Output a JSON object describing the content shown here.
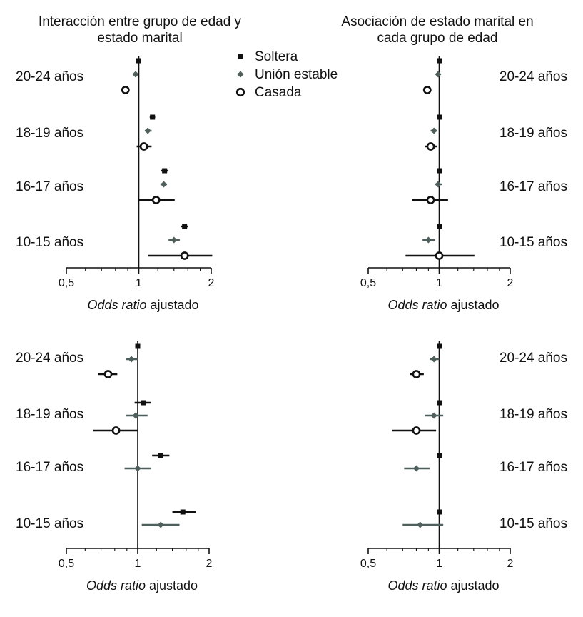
{
  "colors": {
    "soltera": "#111111",
    "union": "#4f5f5c",
    "casada": "#111111",
    "axis": "#111111"
  },
  "legend": {
    "items": [
      {
        "key": "soltera",
        "label": "Soltera",
        "marker": "square"
      },
      {
        "key": "union",
        "label": "Unión estable",
        "marker": "diamond"
      },
      {
        "key": "casada",
        "label": "Casada",
        "marker": "circle"
      }
    ]
  },
  "chart_data": [
    {
      "type": "forest",
      "title": [
        "Interacción entre grupo de edad y",
        "estado marital"
      ],
      "xlabel_italic": "Odds ratio",
      "xlabel_rest": " ajustado",
      "xscale": "log",
      "xlim": [
        0.5,
        2
      ],
      "xticks": [
        0.5,
        1,
        2
      ],
      "xtick_labels": [
        "0,5",
        "1",
        "2"
      ],
      "reference": 1,
      "label_side": "left",
      "groups": [
        {
          "label": "20-24 años",
          "points": [
            {
              "series": "soltera",
              "value": 1.0
            },
            {
              "series": "union",
              "value": 0.97
            },
            {
              "series": "casada",
              "value": 0.88
            }
          ]
        },
        {
          "label": "18-19 años",
          "points": [
            {
              "series": "soltera",
              "value": 1.14,
              "lo": 1.11,
              "hi": 1.17
            },
            {
              "series": "union",
              "value": 1.09,
              "lo": 1.06,
              "hi": 1.13
            },
            {
              "series": "casada",
              "value": 1.05,
              "lo": 0.98,
              "hi": 1.13
            }
          ]
        },
        {
          "label": "16-17 años",
          "points": [
            {
              "series": "soltera",
              "value": 1.28,
              "lo": 1.24,
              "hi": 1.32
            },
            {
              "series": "union",
              "value": 1.27,
              "lo": 1.23,
              "hi": 1.31
            },
            {
              "series": "casada",
              "value": 1.18,
              "lo": 1.0,
              "hi": 1.41
            }
          ]
        },
        {
          "label": "10-15 años",
          "points": [
            {
              "series": "soltera",
              "value": 1.55,
              "lo": 1.5,
              "hi": 1.6
            },
            {
              "series": "union",
              "value": 1.4,
              "lo": 1.33,
              "hi": 1.48
            },
            {
              "series": "casada",
              "value": 1.55,
              "lo": 1.09,
              "hi": 2.02
            }
          ]
        }
      ]
    },
    {
      "type": "forest",
      "title": [
        "Asociación de estado marital en",
        "cada grupo de edad"
      ],
      "xlabel_italic": "Odds ratio",
      "xlabel_rest": " ajustado",
      "xscale": "log",
      "xlim": [
        0.5,
        2
      ],
      "xticks": [
        0.5,
        1,
        2
      ],
      "xtick_labels": [
        "0,5",
        "1",
        "2"
      ],
      "reference": 1,
      "label_side": "right",
      "groups": [
        {
          "label": "20-24 años",
          "points": [
            {
              "series": "soltera",
              "value": 1.0
            },
            {
              "series": "union",
              "value": 0.99
            },
            {
              "series": "casada",
              "value": 0.89
            }
          ]
        },
        {
          "label": "18-19 años",
          "points": [
            {
              "series": "soltera",
              "value": 1.0
            },
            {
              "series": "union",
              "value": 0.95,
              "lo": 0.92,
              "hi": 0.98
            },
            {
              "series": "casada",
              "value": 0.92,
              "lo": 0.87,
              "hi": 0.98
            }
          ]
        },
        {
          "label": "16-17 años",
          "points": [
            {
              "series": "soltera",
              "value": 1.0
            },
            {
              "series": "union",
              "value": 0.99,
              "lo": 0.96,
              "hi": 1.03
            },
            {
              "series": "casada",
              "value": 0.92,
              "lo": 0.77,
              "hi": 1.09
            }
          ]
        },
        {
          "label": "10-15 años",
          "points": [
            {
              "series": "soltera",
              "value": 1.0
            },
            {
              "series": "union",
              "value": 0.9,
              "lo": 0.85,
              "hi": 0.96
            },
            {
              "series": "casada",
              "value": 1.0,
              "lo": 0.72,
              "hi": 1.41
            }
          ]
        }
      ]
    },
    {
      "type": "forest",
      "title": [],
      "xlabel_italic": "Odds ratio",
      "xlabel_rest": " ajustado",
      "xscale": "log",
      "xlim": [
        0.5,
        2
      ],
      "xticks": [
        0.5,
        1,
        2
      ],
      "xtick_labels": [
        "0,5",
        "1",
        "2"
      ],
      "reference": 1,
      "label_side": "left",
      "groups": [
        {
          "label": "20-24 años",
          "points": [
            {
              "series": "soltera",
              "value": 1.0
            },
            {
              "series": "union",
              "value": 0.94,
              "lo": 0.89,
              "hi": 1.0
            },
            {
              "series": "casada",
              "value": 0.75,
              "lo": 0.68,
              "hi": 0.82
            }
          ]
        },
        {
          "label": "18-19 años",
          "points": [
            {
              "series": "soltera",
              "value": 1.06,
              "lo": 0.97,
              "hi": 1.14
            },
            {
              "series": "union",
              "value": 0.98,
              "lo": 0.89,
              "hi": 1.1
            },
            {
              "series": "casada",
              "value": 0.81,
              "lo": 0.65,
              "hi": 1.0
            }
          ]
        },
        {
          "label": "16-17 años",
          "points": [
            {
              "series": "soltera",
              "value": 1.25,
              "lo": 1.15,
              "hi": 1.36
            },
            {
              "series": "union",
              "value": 1.0,
              "lo": 0.88,
              "hi": 1.14
            }
          ]
        },
        {
          "label": "10-15 años",
          "points": [
            {
              "series": "soltera",
              "value": 1.55,
              "lo": 1.4,
              "hi": 1.76
            },
            {
              "series": "union",
              "value": 1.25,
              "lo": 1.04,
              "hi": 1.5
            }
          ]
        }
      ]
    },
    {
      "type": "forest",
      "title": [],
      "xlabel_italic": "Odds ratio",
      "xlabel_rest": " ajustado",
      "xscale": "log",
      "xlim": [
        0.5,
        2
      ],
      "xticks": [
        0.5,
        1,
        2
      ],
      "xtick_labels": [
        "0,5",
        "1",
        "2"
      ],
      "reference": 1,
      "label_side": "right",
      "groups": [
        {
          "label": "20-24 años",
          "points": [
            {
              "series": "soltera",
              "value": 1.0
            },
            {
              "series": "union",
              "value": 0.95,
              "lo": 0.91,
              "hi": 1.0
            },
            {
              "series": "casada",
              "value": 0.8,
              "lo": 0.75,
              "hi": 0.86
            }
          ]
        },
        {
          "label": "18-19 años",
          "points": [
            {
              "series": "soltera",
              "value": 1.0
            },
            {
              "series": "union",
              "value": 0.95,
              "lo": 0.87,
              "hi": 1.04
            },
            {
              "series": "casada",
              "value": 0.8,
              "lo": 0.63,
              "hi": 0.97
            }
          ]
        },
        {
          "label": "16-17 años",
          "points": [
            {
              "series": "soltera",
              "value": 1.0
            },
            {
              "series": "union",
              "value": 0.8,
              "lo": 0.71,
              "hi": 0.91
            }
          ]
        },
        {
          "label": "10-15 años",
          "points": [
            {
              "series": "soltera",
              "value": 1.0
            },
            {
              "series": "union",
              "value": 0.83,
              "lo": 0.7,
              "hi": 1.04
            }
          ]
        }
      ]
    }
  ]
}
